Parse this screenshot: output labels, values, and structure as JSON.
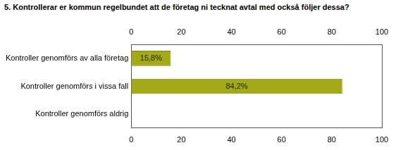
{
  "chart_data": {
    "type": "bar",
    "title": "5. Kontrollerar er kommun regelbundet att de företag ni tecknat avtal med också följer dessa?",
    "orientation": "horizontal",
    "categories": [
      "Kontroller genomförs av alla företag",
      "Kontroller genomförs i vissa fall",
      "Kontroller genomförs aldrig"
    ],
    "values": [
      15.8,
      84.2,
      0
    ],
    "value_labels": [
      "15,8%",
      "84,2%",
      null
    ],
    "data_labels": true,
    "color": "#a2aa14",
    "xlim": [
      0,
      100
    ],
    "xticks": [
      0,
      20,
      40,
      60,
      80,
      100
    ],
    "grid": false
  }
}
